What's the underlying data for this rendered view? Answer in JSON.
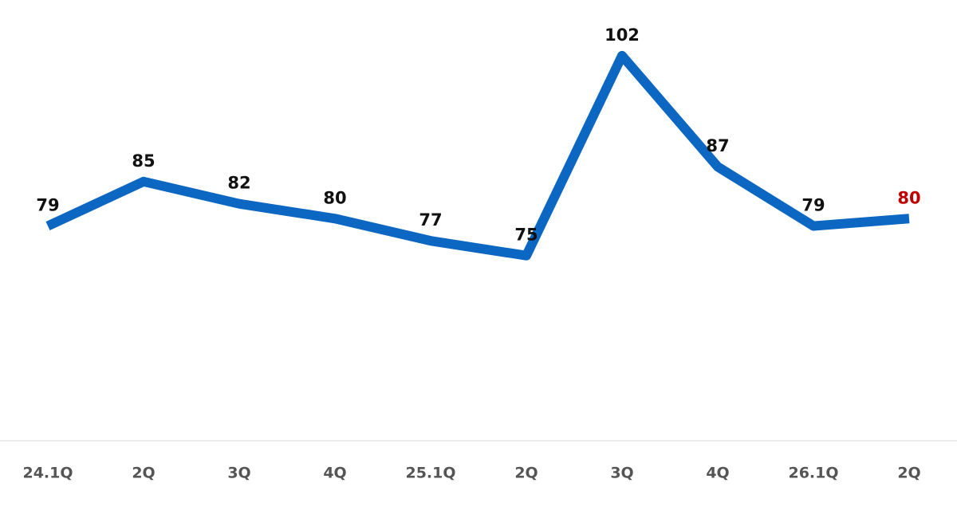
{
  "chart_data": {
    "type": "line",
    "categories": [
      "24.1Q",
      "2Q",
      "3Q",
      "4Q",
      "25.1Q",
      "2Q",
      "3Q",
      "4Q",
      "26.1Q",
      "2Q"
    ],
    "series": [
      {
        "color": "#0b67c2",
        "values": [
          79,
          85,
          82,
          80,
          77,
          75,
          102,
          87,
          79,
          80
        ]
      }
    ],
    "ylim": [
      50,
      105
    ],
    "label_color": "#111111",
    "last_label_color": "#c00000"
  }
}
